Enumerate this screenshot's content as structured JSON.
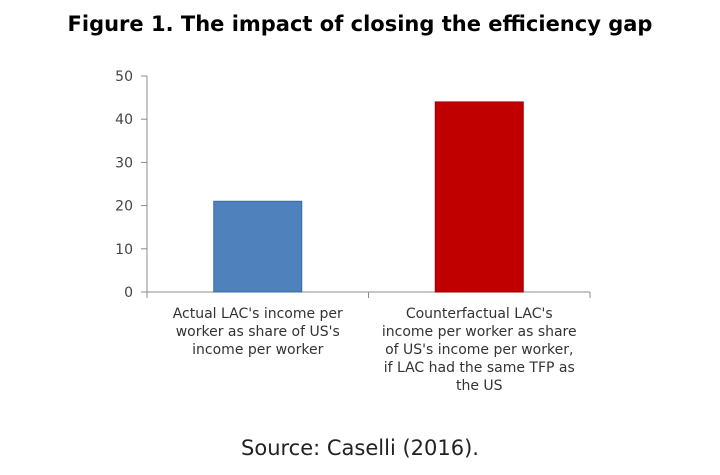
{
  "chart_data": {
    "type": "bar",
    "title": "Figure 1. The impact of closing the efficiency gap",
    "categories": [
      [
        "Actual LAC's income per",
        "worker as share of US's",
        "income per worker"
      ],
      [
        "Counterfactual LAC's",
        "income per worker as share",
        "of US's income per worker,",
        "if LAC had the same TFP as",
        "the US"
      ]
    ],
    "values": [
      21,
      44
    ],
    "colors": [
      "#4f81bd",
      "#c00000"
    ],
    "ylim": [
      0,
      50
    ],
    "yticks": [
      0,
      10,
      20,
      30,
      40,
      50
    ],
    "xlabel": "",
    "ylabel": "",
    "grid": false,
    "legend": "none"
  },
  "source": "Source: Caselli (2016)."
}
